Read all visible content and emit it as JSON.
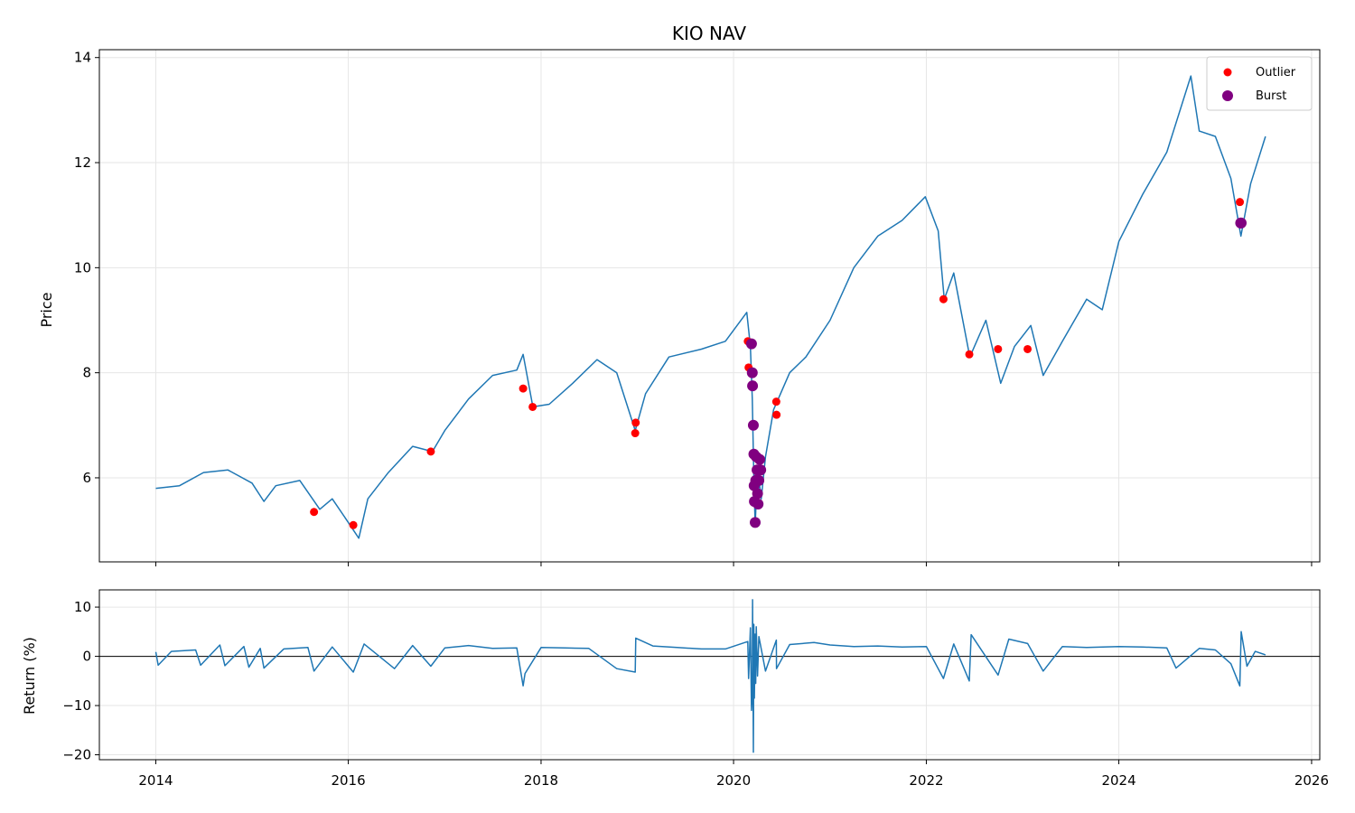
{
  "chart_data": [
    {
      "type": "line",
      "title": "KIO NAV",
      "ylabel": "Price",
      "xlabel": "",
      "xlim": [
        "2013-06-01",
        "2026-02-01"
      ],
      "ylim": [
        4.4,
        14.15
      ],
      "x_ticks": [
        "2014",
        "2016",
        "2018",
        "2020",
        "2022",
        "2024",
        "2026"
      ],
      "y_ticks": [
        6,
        8,
        10,
        12,
        14
      ],
      "grid": true,
      "legend_position": "top-right",
      "series": [
        {
          "color": "#1f77b4",
          "points": [
            [
              "2014-01-01",
              5.8
            ],
            [
              "2014-04-01",
              5.85
            ],
            [
              "2014-07-01",
              6.1
            ],
            [
              "2014-10-01",
              6.15
            ],
            [
              "2015-01-01",
              5.9
            ],
            [
              "2015-02-15",
              5.55
            ],
            [
              "2015-04-01",
              5.85
            ],
            [
              "2015-07-01",
              5.95
            ],
            [
              "2015-09-15",
              5.4
            ],
            [
              "2015-11-01",
              5.6
            ],
            [
              "2016-01-01",
              5.15
            ],
            [
              "2016-02-10",
              4.85
            ],
            [
              "2016-03-15",
              5.6
            ],
            [
              "2016-06-01",
              6.1
            ],
            [
              "2016-09-01",
              6.6
            ],
            [
              "2016-11-15",
              6.5
            ],
            [
              "2017-01-01",
              6.9
            ],
            [
              "2017-04-01",
              7.5
            ],
            [
              "2017-07-01",
              7.95
            ],
            [
              "2017-10-01",
              8.05
            ],
            [
              "2017-10-25",
              8.35
            ],
            [
              "2017-12-01",
              7.35
            ],
            [
              "2018-02-01",
              7.4
            ],
            [
              "2018-05-01",
              7.8
            ],
            [
              "2018-08-01",
              8.25
            ],
            [
              "2018-10-15",
              8.0
            ],
            [
              "2018-12-24",
              6.9
            ],
            [
              "2019-02-01",
              7.6
            ],
            [
              "2019-05-01",
              8.3
            ],
            [
              "2019-09-01",
              8.45
            ],
            [
              "2019-12-01",
              8.6
            ],
            [
              "2020-02-20",
              9.15
            ],
            [
              "2020-03-05",
              8.5
            ],
            [
              "2020-03-12",
              7.5
            ],
            [
              "2020-03-18",
              6.0
            ],
            [
              "2020-03-23",
              5.1
            ],
            [
              "2020-04-01",
              6.2
            ],
            [
              "2020-04-15",
              5.6
            ],
            [
              "2020-05-01",
              6.4
            ],
            [
              "2020-06-01",
              7.3
            ],
            [
              "2020-08-01",
              8.0
            ],
            [
              "2020-10-01",
              8.3
            ],
            [
              "2021-01-01",
              9.0
            ],
            [
              "2021-04-01",
              10.0
            ],
            [
              "2021-07-01",
              10.6
            ],
            [
              "2021-10-01",
              10.9
            ],
            [
              "2021-12-28",
              11.35
            ],
            [
              "2022-02-15",
              10.7
            ],
            [
              "2022-03-10",
              9.4
            ],
            [
              "2022-04-15",
              9.9
            ],
            [
              "2022-06-15",
              8.3
            ],
            [
              "2022-08-15",
              9.0
            ],
            [
              "2022-10-10",
              7.8
            ],
            [
              "2022-12-01",
              8.5
            ],
            [
              "2023-02-01",
              8.9
            ],
            [
              "2023-03-20",
              7.95
            ],
            [
              "2023-06-01",
              8.6
            ],
            [
              "2023-09-01",
              9.4
            ],
            [
              "2023-10-30",
              9.2
            ],
            [
              "2024-01-01",
              10.5
            ],
            [
              "2024-04-01",
              11.4
            ],
            [
              "2024-07-01",
              12.2
            ],
            [
              "2024-09-30",
              13.65
            ],
            [
              "2024-11-01",
              12.6
            ],
            [
              "2025-01-01",
              12.5
            ],
            [
              "2025-03-01",
              11.7
            ],
            [
              "2025-04-08",
              10.6
            ],
            [
              "2025-05-15",
              11.6
            ],
            [
              "2025-07-10",
              12.5
            ]
          ]
        },
        {
          "name": "Outlier",
          "type": "scatter",
          "color": "#ff0000",
          "points": [
            [
              "2015-08-24",
              5.35
            ],
            [
              "2016-01-20",
              5.1
            ],
            [
              "2016-11-09",
              6.5
            ],
            [
              "2017-10-25",
              7.7
            ],
            [
              "2017-11-30",
              7.35
            ],
            [
              "2018-12-24",
              6.85
            ],
            [
              "2018-12-26",
              7.05
            ],
            [
              "2020-02-24",
              8.6
            ],
            [
              "2020-02-27",
              8.1
            ],
            [
              "2020-06-11",
              7.45
            ],
            [
              "2020-06-12",
              7.2
            ],
            [
              "2022-03-07",
              9.4
            ],
            [
              "2022-06-13",
              8.35
            ],
            [
              "2022-09-30",
              8.45
            ],
            [
              "2023-01-20",
              8.45
            ],
            [
              "2025-04-04",
              11.25
            ]
          ]
        },
        {
          "name": "Burst",
          "type": "scatter",
          "color": "#800080",
          "points": [
            [
              "2020-03-09",
              8.55
            ],
            [
              "2020-03-12",
              8.0
            ],
            [
              "2020-03-13",
              7.75
            ],
            [
              "2020-03-16",
              7.0
            ],
            [
              "2020-03-18",
              6.45
            ],
            [
              "2020-03-19",
              5.85
            ],
            [
              "2020-03-20",
              5.55
            ],
            [
              "2020-03-23",
              5.15
            ],
            [
              "2020-03-25",
              5.95
            ],
            [
              "2020-03-27",
              6.4
            ],
            [
              "2020-03-30",
              6.15
            ],
            [
              "2020-04-01",
              5.7
            ],
            [
              "2020-04-03",
              5.5
            ],
            [
              "2020-04-06",
              5.95
            ],
            [
              "2020-04-09",
              6.35
            ],
            [
              "2020-04-13",
              6.15
            ],
            [
              "2025-04-07",
              10.85
            ],
            [
              "2025-04-09",
              10.85
            ]
          ]
        }
      ]
    },
    {
      "type": "line",
      "title": "",
      "ylabel": "Return (%)",
      "xlabel": "",
      "xlim": [
        "2013-06-01",
        "2026-02-01"
      ],
      "ylim": [
        -21,
        13.5
      ],
      "x_ticks": [
        "2014",
        "2016",
        "2018",
        "2020",
        "2022",
        "2024",
        "2026"
      ],
      "y_ticks": [
        -20,
        -10,
        0,
        10
      ],
      "grid": true,
      "zero_line": true,
      "series": [
        {
          "color": "#1f77b4",
          "points": [
            [
              "2014-01-01",
              0.9
            ],
            [
              "2014-01-10",
              -1.8
            ],
            [
              "2014-03-01",
              1.0
            ],
            [
              "2014-06-01",
              1.3
            ],
            [
              "2014-06-20",
              -1.8
            ],
            [
              "2014-09-01",
              2.3
            ],
            [
              "2014-09-20",
              -1.9
            ],
            [
              "2014-12-01",
              2.0
            ],
            [
              "2014-12-20",
              -2.2
            ],
            [
              "2015-02-01",
              1.6
            ],
            [
              "2015-02-15",
              -2.4
            ],
            [
              "2015-05-01",
              1.5
            ],
            [
              "2015-08-01",
              1.8
            ],
            [
              "2015-08-24",
              -3.0
            ],
            [
              "2015-11-01",
              1.9
            ],
            [
              "2016-01-20",
              -3.2
            ],
            [
              "2016-03-01",
              2.5
            ],
            [
              "2016-06-24",
              -2.5
            ],
            [
              "2016-09-01",
              2.2
            ],
            [
              "2016-11-09",
              -2.0
            ],
            [
              "2017-01-01",
              1.7
            ],
            [
              "2017-04-01",
              2.2
            ],
            [
              "2017-07-01",
              1.6
            ],
            [
              "2017-10-01",
              1.7
            ],
            [
              "2017-10-25",
              -6.0
            ],
            [
              "2017-11-01",
              -3.5
            ],
            [
              "2018-01-01",
              1.8
            ],
            [
              "2018-04-01",
              1.7
            ],
            [
              "2018-07-01",
              1.6
            ],
            [
              "2018-10-15",
              -2.5
            ],
            [
              "2018-12-24",
              -3.2
            ],
            [
              "2018-12-26",
              3.7
            ],
            [
              "2019-03-01",
              2.1
            ],
            [
              "2019-06-01",
              1.8
            ],
            [
              "2019-09-01",
              1.5
            ],
            [
              "2019-12-01",
              1.5
            ],
            [
              "2020-02-24",
              3.0
            ],
            [
              "2020-02-27",
              -4.5
            ],
            [
              "2020-03-05",
              5.8
            ],
            [
              "2020-03-09",
              -11.0
            ],
            [
              "2020-03-12",
              -7.5
            ],
            [
              "2020-03-13",
              11.5
            ],
            [
              "2020-03-16",
              -19.5
            ],
            [
              "2020-03-18",
              6.5
            ],
            [
              "2020-03-20",
              -8.5
            ],
            [
              "2020-03-23",
              4.5
            ],
            [
              "2020-03-25",
              -5.5
            ],
            [
              "2020-03-27",
              6.0
            ],
            [
              "2020-04-01",
              -4.0
            ],
            [
              "2020-04-06",
              4.0
            ],
            [
              "2020-05-01",
              -3.0
            ],
            [
              "2020-06-11",
              3.3
            ],
            [
              "2020-06-12",
              -2.5
            ],
            [
              "2020-08-01",
              2.4
            ],
            [
              "2020-11-01",
              2.8
            ],
            [
              "2021-01-01",
              2.3
            ],
            [
              "2021-04-01",
              2.0
            ],
            [
              "2021-07-01",
              2.1
            ],
            [
              "2021-10-01",
              1.9
            ],
            [
              "2022-01-01",
              2.0
            ],
            [
              "2022-03-07",
              -4.5
            ],
            [
              "2022-04-15",
              2.5
            ],
            [
              "2022-06-13",
              -5.0
            ],
            [
              "2022-06-20",
              4.4
            ],
            [
              "2022-09-30",
              -3.8
            ],
            [
              "2022-11-10",
              3.5
            ],
            [
              "2023-01-20",
              2.6
            ],
            [
              "2023-03-20",
              -3.0
            ],
            [
              "2023-06-01",
              2.0
            ],
            [
              "2023-09-01",
              1.8
            ],
            [
              "2024-01-01",
              2.0
            ],
            [
              "2024-04-01",
              1.9
            ],
            [
              "2024-07-01",
              1.7
            ],
            [
              "2024-08-05",
              -2.4
            ],
            [
              "2024-11-01",
              1.6
            ],
            [
              "2025-01-01",
              1.3
            ],
            [
              "2025-03-01",
              -1.5
            ],
            [
              "2025-04-04",
              -6.0
            ],
            [
              "2025-04-09",
              5.0
            ],
            [
              "2025-05-01",
              -2.0
            ],
            [
              "2025-06-01",
              1.0
            ],
            [
              "2025-07-10",
              0.3
            ]
          ]
        }
      ]
    }
  ]
}
